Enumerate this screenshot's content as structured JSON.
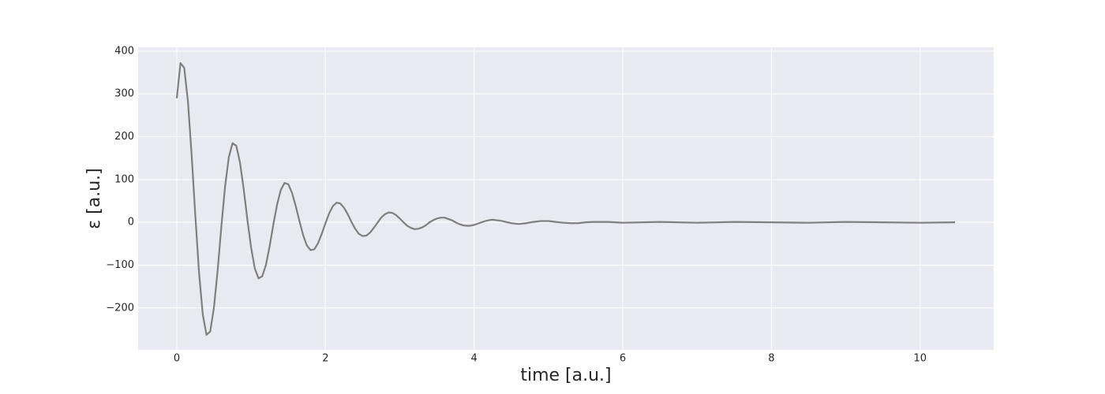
{
  "chart_data": {
    "type": "line",
    "xlabel": "time [a.u.]",
    "ylabel": "ε [a.u.]",
    "x": [
      0.0,
      0.05,
      0.1,
      0.15,
      0.2,
      0.25,
      0.3,
      0.35,
      0.4,
      0.45,
      0.5,
      0.55,
      0.6,
      0.65,
      0.7,
      0.75,
      0.8,
      0.85,
      0.9,
      0.95,
      1.0,
      1.05,
      1.1,
      1.15,
      1.2,
      1.25,
      1.3,
      1.35,
      1.4,
      1.45,
      1.5,
      1.55,
      1.6,
      1.65,
      1.7,
      1.75,
      1.8,
      1.85,
      1.9,
      1.95,
      2.0,
      2.05,
      2.1,
      2.15,
      2.2,
      2.25,
      2.3,
      2.35,
      2.4,
      2.45,
      2.5,
      2.55,
      2.6,
      2.65,
      2.7,
      2.75,
      2.8,
      2.85,
      2.9,
      2.95,
      3.0,
      3.05,
      3.1,
      3.15,
      3.2,
      3.25,
      3.3,
      3.35,
      3.4,
      3.45,
      3.5,
      3.55,
      3.6,
      3.65,
      3.7,
      3.75,
      3.8,
      3.85,
      3.9,
      3.95,
      4.0,
      4.05,
      4.1,
      4.15,
      4.2,
      4.25,
      4.3,
      4.35,
      4.4,
      4.45,
      4.5,
      4.6,
      4.7,
      4.8,
      4.9,
      5.0,
      5.1,
      5.2,
      5.3,
      5.4,
      5.5,
      5.6,
      5.7,
      5.8,
      5.9,
      6.0,
      6.5,
      7.0,
      7.5,
      8.0,
      8.5,
      9.0,
      9.5,
      10.0,
      10.47
    ],
    "values": [
      290,
      372,
      361,
      283,
      157,
      14,
      -119,
      -216,
      -263,
      -255,
      -199,
      -112,
      -9,
      84,
      152,
      185,
      179,
      140,
      78,
      6,
      -59,
      -108,
      -131,
      -126,
      -99,
      -55,
      -4,
      42,
      76,
      92,
      89,
      69,
      38,
      3,
      -30,
      -54,
      -65,
      -63,
      -49,
      -27,
      -2,
      21,
      38,
      46,
      44,
      34,
      19,
      1,
      -15,
      -27,
      -32,
      -31,
      -24,
      -13,
      -1,
      11,
      19,
      23,
      22,
      17,
      9,
      0,
      -8,
      -13,
      -16,
      -15,
      -12,
      -7,
      0,
      5,
      9,
      11,
      11,
      8,
      5,
      0,
      -4,
      -7,
      -8,
      -8,
      -6,
      -3,
      0,
      3,
      5,
      6,
      5,
      4,
      2,
      0,
      -2,
      -4,
      -2,
      1,
      3,
      3,
      1,
      -1,
      -2,
      -2,
      0,
      1,
      1,
      1,
      0,
      -1,
      1,
      -1,
      1,
      0,
      -1,
      1,
      0,
      -1,
      0
    ],
    "color": "#808080",
    "xlim": [
      -0.52,
      10.99
    ],
    "xticks": [
      0,
      2,
      4,
      6,
      8,
      10
    ],
    "ylim": [
      -298,
      409
    ],
    "yticks": [
      {
        "value": -200,
        "label": "−200"
      },
      {
        "value": -100,
        "label": "−100"
      },
      0,
      100,
      200,
      300,
      400
    ],
    "grid": true
  }
}
